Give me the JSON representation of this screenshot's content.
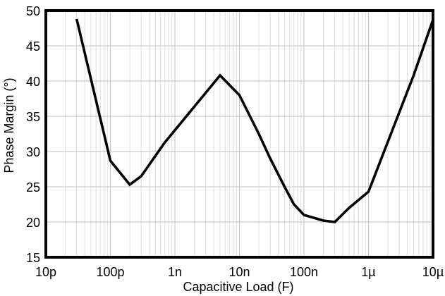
{
  "chart_data": {
    "type": "line",
    "title": "",
    "xlabel": "Capacitive Load (F)",
    "ylabel": "Phase Margin (°)",
    "x_scale": "log",
    "xlim": [
      1e-11,
      1e-05
    ],
    "ylim": [
      15,
      50
    ],
    "y_tick_step": 5,
    "grid": "major-horizontal, major-and-minor-vertical-log",
    "legend": "none",
    "x_ticks": [
      {
        "value": 1e-11,
        "label": "10p"
      },
      {
        "value": 1e-10,
        "label": "100p"
      },
      {
        "value": 1e-09,
        "label": "1n"
      },
      {
        "value": 1e-08,
        "label": "10n"
      },
      {
        "value": 1e-07,
        "label": "100n"
      },
      {
        "value": 1e-06,
        "label": "1µ"
      },
      {
        "value": 1e-05,
        "label": "10µ"
      }
    ],
    "y_ticks": [
      15,
      20,
      25,
      30,
      35,
      40,
      45,
      50
    ],
    "series": [
      {
        "name": "Phase Margin",
        "color": "#000000",
        "points": [
          [
            3e-11,
            48.8
          ],
          [
            1e-10,
            28.7
          ],
          [
            2e-10,
            25.3
          ],
          [
            3e-10,
            26.5
          ],
          [
            7e-10,
            31.3
          ],
          [
            5e-09,
            40.8
          ],
          [
            1e-08,
            38.0
          ],
          [
            2e-08,
            32.5
          ],
          [
            3e-08,
            29.0
          ],
          [
            5e-08,
            25.0
          ],
          [
            7e-08,
            22.5
          ],
          [
            1e-07,
            21.0
          ],
          [
            2e-07,
            20.2
          ],
          [
            3e-07,
            20.0
          ],
          [
            5e-07,
            22.0
          ],
          [
            1e-06,
            24.3
          ],
          [
            5e-06,
            40.8
          ],
          [
            1e-05,
            48.7
          ]
        ]
      }
    ]
  },
  "styles": {
    "curve_color": "#000000",
    "frame_color": "#000000",
    "grid_major_color": "#c2c2c2",
    "grid_minor_color": "#dddddd",
    "background_color": "#ffffff",
    "text_color": "#000000"
  }
}
